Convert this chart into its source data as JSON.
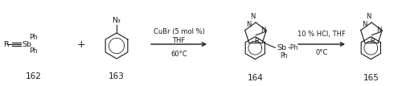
{
  "background_color": "#ffffff",
  "fig_width": 5.0,
  "fig_height": 1.07,
  "dpi": 100,
  "font_color": "#1a1a1a",
  "font_size_small": 6.0,
  "font_size_med": 6.8,
  "font_size_large": 7.5,
  "font_size_label": 7.5,
  "font_size_plus": 9,
  "font_size_reagent": 6.0,
  "reagents1_line1": "CuBr (5 mol %)",
  "reagents1_line2": "THF",
  "reagents1_line3": "60°C",
  "reagents2_line1": "10 % HCl, THF",
  "reagents2_line2": "0°C"
}
